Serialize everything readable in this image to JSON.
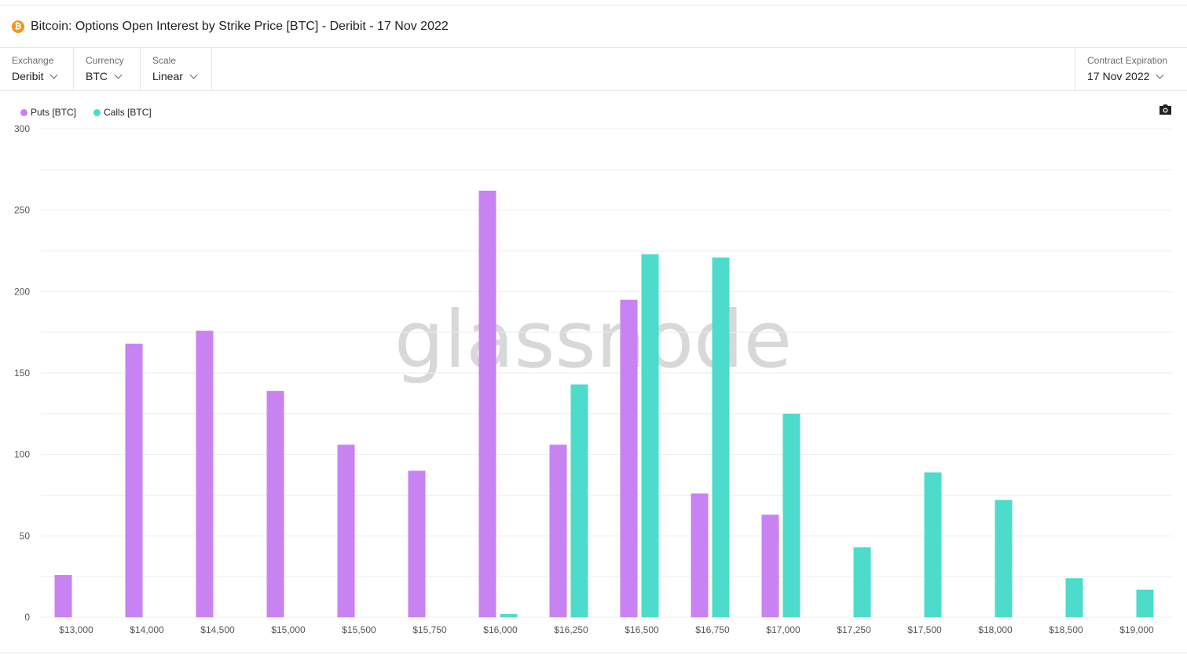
{
  "header": {
    "coin_symbol": "₿",
    "title": "Bitcoin: Options Open Interest by Strike Price [BTC] - Deribit - 17 Nov 2022"
  },
  "controls": {
    "exchange": {
      "label": "Exchange",
      "value": "Deribit"
    },
    "currency": {
      "label": "Currency",
      "value": "BTC"
    },
    "scale": {
      "label": "Scale",
      "value": "Linear"
    },
    "expiration": {
      "label": "Contract Expiration",
      "value": "17 Nov 2022"
    }
  },
  "watermark": "glassnode",
  "colors": {
    "puts": "#c882f2",
    "calls": "#4ddccb",
    "grid": "#eeeeee",
    "axis_text": "#555555"
  },
  "icons": {
    "camera": "camera-icon"
  },
  "chart_data": {
    "type": "bar",
    "categories": [
      "$13,000",
      "$14,000",
      "$14,500",
      "$15,000",
      "$15,500",
      "$15,750",
      "$16,000",
      "$16,250",
      "$16,500",
      "$16,750",
      "$17,000",
      "$17,250",
      "$17,500",
      "$18,000",
      "$18,500",
      "$19,000"
    ],
    "series": [
      {
        "name": "Puts [BTC]",
        "values": [
          26,
          168,
          176,
          139,
          106,
          90,
          262,
          106,
          195,
          76,
          63,
          0,
          0,
          0,
          0,
          0
        ]
      },
      {
        "name": "Calls [BTC]",
        "values": [
          0,
          0,
          0,
          0,
          0,
          0,
          2,
          143,
          223,
          221,
          125,
          43,
          89,
          72,
          24,
          17
        ]
      }
    ],
    "yticks": [
      0,
      50,
      100,
      150,
      200,
      250,
      300
    ],
    "ylim": [
      0,
      300
    ],
    "grid": true,
    "legend_position": "top-left"
  }
}
